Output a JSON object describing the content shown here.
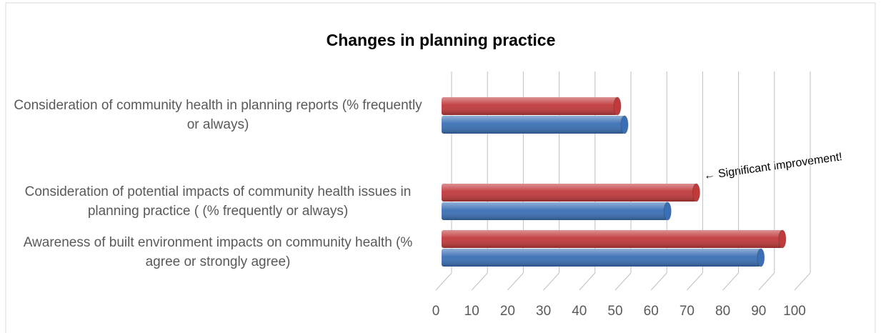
{
  "chart_data": {
    "type": "bar",
    "orientation": "horizontal",
    "title": "Changes in planning practice",
    "categories": [
      "Consideration of community health in planning reports (% frequently or always)",
      "Consideration of potential impacts of community health issues in planning practice ( (% frequently or always)",
      "Awareness of built environment impacts on community health (% agree or strongly agree)"
    ],
    "series": [
      {
        "color": "#c0393b",
        "values": [
          49,
          71,
          95
        ]
      },
      {
        "color": "#3a6fb5",
        "values": [
          51,
          63,
          89
        ]
      }
    ],
    "xlim": [
      0,
      100
    ],
    "xticks": [
      0,
      10,
      20,
      30,
      40,
      50,
      60,
      70,
      80,
      90,
      100
    ],
    "grid": true,
    "annotation": "← Significant improvement!"
  }
}
